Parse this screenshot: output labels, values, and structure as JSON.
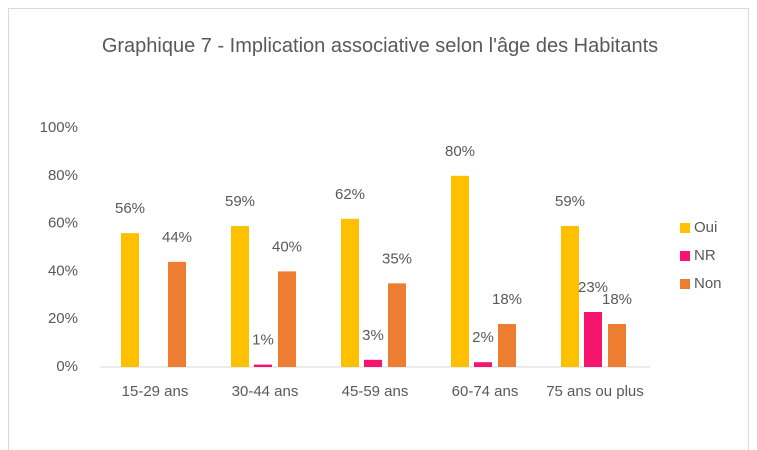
{
  "chart_data": {
    "type": "bar",
    "title": "Graphique 7 - Implication associative selon l'âge des Habitants",
    "categories": [
      "15-29 ans",
      "30-44 ans",
      "45-59 ans",
      "60-74 ans",
      "75 ans ou plus"
    ],
    "series": [
      {
        "name": "Oui",
        "color": "#ffc000",
        "values": [
          56,
          59,
          62,
          80,
          59
        ],
        "value_labels": [
          "56%",
          "59%",
          "62%",
          "80%",
          "59%"
        ]
      },
      {
        "name": "NR",
        "color": "#f5146e",
        "values": [
          null,
          1,
          3,
          2,
          23
        ],
        "value_labels": [
          null,
          "1%",
          "3%",
          "2%",
          "23%"
        ]
      },
      {
        "name": "Non",
        "color": "#ed7d31",
        "values": [
          44,
          40,
          35,
          18,
          18
        ],
        "value_labels": [
          "44%",
          "40%",
          "35%",
          "18%",
          "18%"
        ]
      }
    ],
    "ylim": [
      0,
      100
    ],
    "yticks": [
      {
        "value": 0,
        "label": "0%"
      },
      {
        "value": 20,
        "label": "20%"
      },
      {
        "value": 40,
        "label": "40%"
      },
      {
        "value": 60,
        "label": "60%"
      },
      {
        "value": 80,
        "label": "80%"
      },
      {
        "value": 100,
        "label": "100%"
      }
    ],
    "grid": false,
    "legend": "right"
  }
}
